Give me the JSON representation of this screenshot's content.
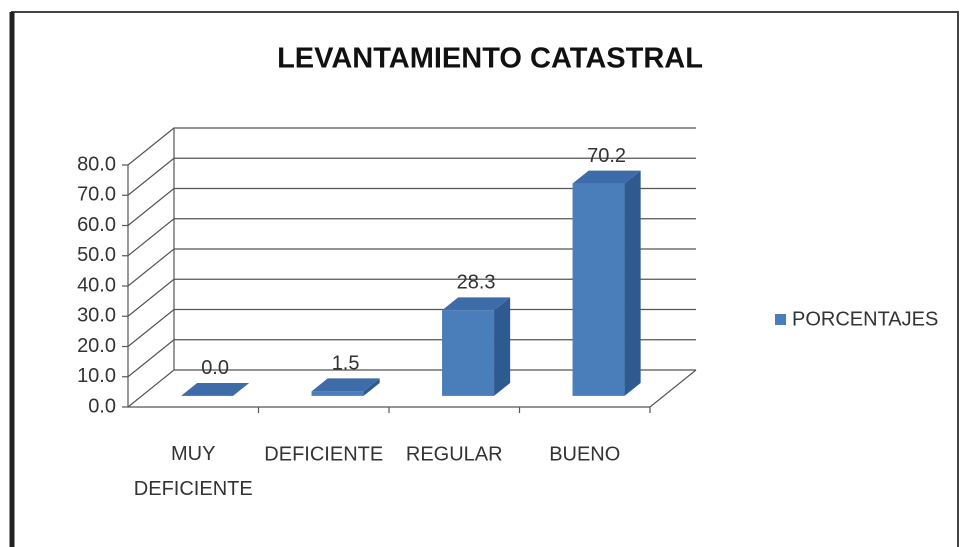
{
  "chart_data": {
    "type": "bar3d",
    "title": "LEVANTAMIENTO CATASTRAL",
    "categories": [
      "MUY DEFICIENTE",
      "DEFICIENTE",
      "REGULAR",
      "BUENO"
    ],
    "series": [
      {
        "name": "PORCENTAJES",
        "color": "#4a7ebb",
        "values": [
          0.0,
          1.5,
          28.3,
          70.2
        ],
        "value_labels": [
          "0.0",
          "1.5",
          "28.3",
          "70.2"
        ]
      }
    ],
    "ylim": [
      0,
      80
    ],
    "yticks": [
      {
        "value": 0,
        "label": "0.0"
      },
      {
        "value": 10,
        "label": "10.0"
      },
      {
        "value": 20,
        "label": "20.0"
      },
      {
        "value": 30,
        "label": "30.0"
      },
      {
        "value": 40,
        "label": "40.0"
      },
      {
        "value": 50,
        "label": "50.0"
      },
      {
        "value": 60,
        "label": "60.0"
      },
      {
        "value": 70,
        "label": "70.0"
      },
      {
        "value": 80,
        "label": "80.0"
      }
    ],
    "grid": true,
    "legend": "right"
  }
}
